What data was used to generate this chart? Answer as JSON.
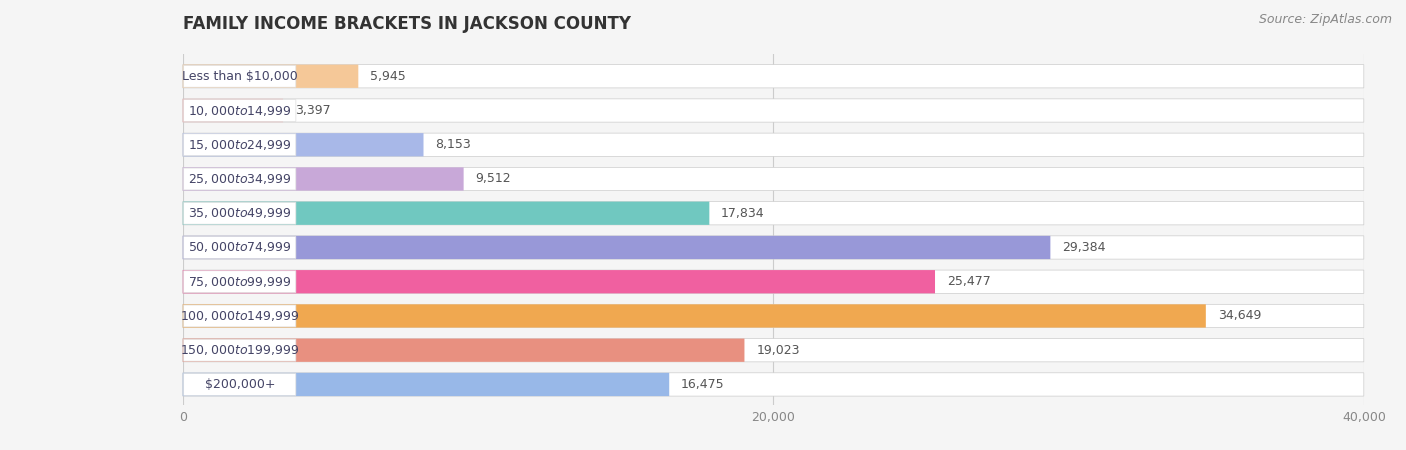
{
  "title": "FAMILY INCOME BRACKETS IN JACKSON COUNTY",
  "source": "Source: ZipAtlas.com",
  "categories": [
    "Less than $10,000",
    "$10,000 to $14,999",
    "$15,000 to $24,999",
    "$25,000 to $34,999",
    "$35,000 to $49,999",
    "$50,000 to $74,999",
    "$75,000 to $99,999",
    "$100,000 to $149,999",
    "$150,000 to $199,999",
    "$200,000+"
  ],
  "values": [
    5945,
    3397,
    8153,
    9512,
    17834,
    29384,
    25477,
    34649,
    19023,
    16475
  ],
  "colors": [
    "#F5C898",
    "#F5A0A0",
    "#A8B8E8",
    "#C8A8D8",
    "#70C8C0",
    "#9898D8",
    "#F060A0",
    "#F0A850",
    "#E89080",
    "#98B8E8"
  ],
  "xlim": [
    0,
    40000
  ],
  "xticks": [
    0,
    20000,
    40000
  ],
  "xticklabels": [
    "0",
    "20,000",
    "40,000"
  ],
  "bar_height": 0.68,
  "background_color": "#f5f5f5",
  "bar_bg_color": "#e8e8e8",
  "label_fontsize": 9,
  "value_fontsize": 9,
  "title_fontsize": 12,
  "source_fontsize": 9,
  "label_text_color": "#444466",
  "value_text_color": "#555555",
  "title_color": "#333333"
}
